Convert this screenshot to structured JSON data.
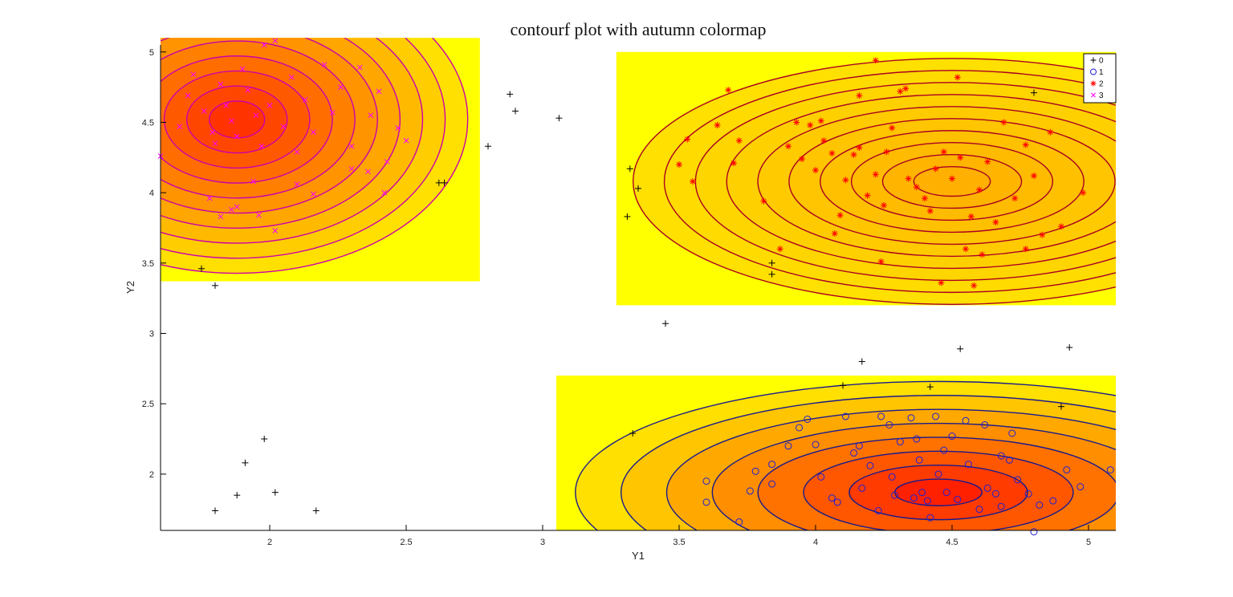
{
  "chart_data": {
    "type": "contour",
    "title": "contourf plot with autumn colormap",
    "xlabel": "Y1",
    "ylabel": "Y2",
    "xlim": [
      1.6,
      5.1
    ],
    "ylim": [
      1.6,
      5.05
    ],
    "xticks": [
      {
        "value": 2,
        "label": "2"
      },
      {
        "value": 2.5,
        "label": "2.5"
      },
      {
        "value": 3,
        "label": "3"
      },
      {
        "value": 3.5,
        "label": "3.5"
      },
      {
        "value": 4,
        "label": "4"
      },
      {
        "value": 4.5,
        "label": "4.5"
      },
      {
        "value": 5,
        "label": "5"
      }
    ],
    "yticks": [
      {
        "value": 2,
        "label": "2"
      },
      {
        "value": 2.5,
        "label": "2.5"
      },
      {
        "value": 3,
        "label": "3"
      },
      {
        "value": 3.5,
        "label": "3.5"
      },
      {
        "value": 4,
        "label": "4"
      },
      {
        "value": 4.5,
        "label": "4.5"
      },
      {
        "value": 5,
        "label": "5"
      }
    ],
    "colormap": "autumn",
    "colormap_colors": {
      "low": "#ffff00",
      "high": "#ff0000"
    },
    "legend": {
      "position": "top-right",
      "entries": [
        {
          "label": "0",
          "marker": "plus",
          "color": "#000000"
        },
        {
          "label": "1",
          "marker": "circle",
          "color": "#1f1fd6"
        },
        {
          "label": "2",
          "marker": "asterisk",
          "color": "#ff0000"
        },
        {
          "label": "3",
          "marker": "cross",
          "color": "#ff00ff"
        }
      ]
    },
    "contour_panels": [
      {
        "name": "class-3-density",
        "xlim": [
          1.6,
          2.77
        ],
        "ylim": [
          3.37,
          5.1
        ],
        "peak": [
          1.88,
          4.52
        ],
        "line_color": "#cc00aa",
        "level_count": 10,
        "peak_color": "#ff3300"
      },
      {
        "name": "class-2-density",
        "xlim": [
          3.27,
          5.1
        ],
        "ylim": [
          3.2,
          5.0
        ],
        "peak": [
          4.5,
          4.08
        ],
        "line_color": "#aa0022",
        "level_count": 10,
        "peak_color": "#ffb000"
      },
      {
        "name": "class-1-density",
        "xlim": [
          3.05,
          5.1
        ],
        "ylim": [
          1.6,
          2.7
        ],
        "peak": [
          4.45,
          1.87
        ],
        "line_color": "#1a1a8c",
        "level_count": 8,
        "peak_color": "#ff2000"
      }
    ],
    "series": [
      {
        "name": "0",
        "marker": "plus",
        "color": "#000000",
        "points": [
          [
            1.75,
            3.46
          ],
          [
            1.8,
            3.34
          ],
          [
            1.98,
            2.25
          ],
          [
            1.91,
            2.08
          ],
          [
            1.88,
            1.85
          ],
          [
            2.02,
            1.87
          ],
          [
            1.8,
            1.74
          ],
          [
            2.17,
            1.74
          ],
          [
            2.62,
            4.07
          ],
          [
            2.64,
            4.07
          ],
          [
            2.8,
            4.33
          ],
          [
            2.88,
            4.7
          ],
          [
            2.9,
            4.58
          ],
          [
            3.06,
            4.53
          ],
          [
            3.32,
            4.17
          ],
          [
            3.35,
            4.03
          ],
          [
            3.31,
            3.83
          ],
          [
            3.45,
            3.07
          ],
          [
            3.33,
            2.29
          ],
          [
            3.84,
            3.5
          ],
          [
            3.84,
            3.42
          ],
          [
            4.1,
            2.63
          ],
          [
            4.17,
            2.8
          ],
          [
            4.42,
            2.62
          ],
          [
            4.53,
            2.89
          ],
          [
            4.8,
            4.71
          ],
          [
            4.9,
            2.48
          ],
          [
            4.93,
            2.9
          ]
        ]
      },
      {
        "name": "1",
        "marker": "circle",
        "color": "#1f1fd6",
        "points": [
          [
            3.6,
            1.95
          ],
          [
            3.6,
            1.8
          ],
          [
            3.72,
            1.66
          ],
          [
            3.76,
            1.88
          ],
          [
            3.78,
            2.02
          ],
          [
            3.84,
            2.07
          ],
          [
            3.84,
            1.93
          ],
          [
            3.9,
            2.2
          ],
          [
            3.94,
            2.33
          ],
          [
            3.97,
            2.39
          ],
          [
            4.0,
            2.21
          ],
          [
            4.02,
            1.98
          ],
          [
            4.06,
            1.83
          ],
          [
            4.08,
            1.8
          ],
          [
            4.11,
            2.41
          ],
          [
            4.14,
            2.15
          ],
          [
            4.17,
            1.9
          ],
          [
            4.2,
            2.06
          ],
          [
            4.23,
            1.74
          ],
          [
            4.27,
            2.35
          ],
          [
            4.28,
            1.98
          ],
          [
            4.31,
            2.23
          ],
          [
            4.35,
            2.4
          ],
          [
            4.37,
            2.25
          ],
          [
            4.38,
            2.1
          ],
          [
            4.39,
            1.87
          ],
          [
            4.41,
            1.81
          ],
          [
            4.42,
            1.69
          ],
          [
            4.45,
            2.0
          ],
          [
            4.47,
            2.17
          ],
          [
            4.48,
            1.87
          ],
          [
            4.5,
            2.27
          ],
          [
            4.52,
            1.82
          ],
          [
            4.56,
            2.07
          ],
          [
            4.6,
            1.75
          ],
          [
            4.63,
            1.9
          ],
          [
            4.66,
            1.86
          ],
          [
            4.68,
            2.13
          ],
          [
            4.71,
            2.1
          ],
          [
            4.74,
            1.96
          ],
          [
            4.78,
            1.86
          ],
          [
            4.8,
            1.59
          ],
          [
            4.82,
            1.78
          ],
          [
            4.87,
            1.81
          ],
          [
            4.92,
            2.03
          ],
          [
            4.97,
            1.91
          ],
          [
            5.08,
            2.03
          ],
          [
            5.11,
            1.8
          ],
          [
            4.16,
            2.2
          ],
          [
            4.24,
            2.41
          ],
          [
            4.29,
            1.85
          ],
          [
            4.36,
            1.83
          ],
          [
            4.44,
            2.41
          ],
          [
            4.55,
            2.38
          ],
          [
            4.62,
            2.35
          ],
          [
            4.72,
            2.29
          ],
          [
            4.68,
            1.77
          ]
        ]
      },
      {
        "name": "2",
        "marker": "asterisk",
        "color": "#ff0000",
        "points": [
          [
            3.5,
            4.2
          ],
          [
            3.53,
            4.38
          ],
          [
            3.55,
            4.08
          ],
          [
            3.64,
            4.48
          ],
          [
            3.7,
            4.21
          ],
          [
            3.72,
            4.37
          ],
          [
            3.81,
            3.94
          ],
          [
            3.87,
            3.6
          ],
          [
            3.9,
            4.33
          ],
          [
            3.93,
            4.5
          ],
          [
            3.95,
            4.24
          ],
          [
            4.0,
            4.16
          ],
          [
            4.03,
            4.37
          ],
          [
            4.06,
            4.28
          ],
          [
            4.09,
            3.84
          ],
          [
            4.11,
            4.09
          ],
          [
            4.16,
            4.32
          ],
          [
            4.19,
            3.98
          ],
          [
            4.22,
            4.13
          ],
          [
            4.25,
            3.91
          ],
          [
            4.28,
            4.46
          ],
          [
            4.31,
            4.72
          ],
          [
            4.34,
            4.1
          ],
          [
            4.37,
            4.04
          ],
          [
            4.4,
            3.96
          ],
          [
            4.44,
            4.17
          ],
          [
            4.47,
            4.29
          ],
          [
            4.5,
            4.1
          ],
          [
            4.52,
            4.82
          ],
          [
            4.55,
            3.6
          ],
          [
            4.57,
            3.83
          ],
          [
            4.6,
            4.02
          ],
          [
            4.63,
            4.22
          ],
          [
            4.66,
            3.79
          ],
          [
            4.69,
            4.5
          ],
          [
            4.73,
            3.96
          ],
          [
            4.77,
            4.34
          ],
          [
            4.8,
            4.12
          ],
          [
            4.83,
            3.7
          ],
          [
            4.86,
            4.43
          ],
          [
            4.9,
            3.76
          ],
          [
            4.98,
            4.0
          ],
          [
            3.68,
            4.73
          ],
          [
            4.22,
            4.94
          ],
          [
            4.07,
            3.71
          ],
          [
            4.24,
            3.51
          ],
          [
            4.46,
            3.36
          ],
          [
            4.58,
            3.34
          ],
          [
            4.16,
            4.69
          ],
          [
            4.33,
            4.74
          ],
          [
            4.02,
            4.51
          ],
          [
            3.98,
            4.48
          ],
          [
            4.14,
            4.27
          ],
          [
            4.26,
            4.29
          ],
          [
            4.42,
            3.87
          ],
          [
            4.53,
            4.25
          ],
          [
            4.61,
            3.56
          ],
          [
            4.77,
            3.6
          ]
        ]
      },
      {
        "name": "3",
        "marker": "cross",
        "color": "#ff00ff",
        "points": [
          [
            1.6,
            4.26
          ],
          [
            1.67,
            4.47
          ],
          [
            1.7,
            4.69
          ],
          [
            1.72,
            4.84
          ],
          [
            1.76,
            4.58
          ],
          [
            1.79,
            4.43
          ],
          [
            1.8,
            4.35
          ],
          [
            1.82,
            4.77
          ],
          [
            1.84,
            4.62
          ],
          [
            1.86,
            4.51
          ],
          [
            1.88,
            4.4
          ],
          [
            1.9,
            4.88
          ],
          [
            1.92,
            4.73
          ],
          [
            1.95,
            4.55
          ],
          [
            1.97,
            4.33
          ],
          [
            1.98,
            5.05
          ],
          [
            2.0,
            4.62
          ],
          [
            2.02,
            5.08
          ],
          [
            2.05,
            4.47
          ],
          [
            2.08,
            4.82
          ],
          [
            2.1,
            4.29
          ],
          [
            2.13,
            4.66
          ],
          [
            2.16,
            4.43
          ],
          [
            2.2,
            4.91
          ],
          [
            2.23,
            4.57
          ],
          [
            2.26,
            4.75
          ],
          [
            2.3,
            4.33
          ],
          [
            2.33,
            4.89
          ],
          [
            2.37,
            4.55
          ],
          [
            2.4,
            4.72
          ],
          [
            2.43,
            4.22
          ],
          [
            2.47,
            4.46
          ],
          [
            2.5,
            4.37
          ],
          [
            2.42,
            4.0
          ],
          [
            2.3,
            4.17
          ],
          [
            2.16,
            3.99
          ],
          [
            2.02,
            3.73
          ],
          [
            1.96,
            3.84
          ],
          [
            1.88,
            3.9
          ],
          [
            1.82,
            3.83
          ],
          [
            1.78,
            3.96
          ],
          [
            1.86,
            3.88
          ],
          [
            2.36,
            4.15
          ],
          [
            2.1,
            4.06
          ],
          [
            1.94,
            4.08
          ]
        ]
      }
    ]
  }
}
